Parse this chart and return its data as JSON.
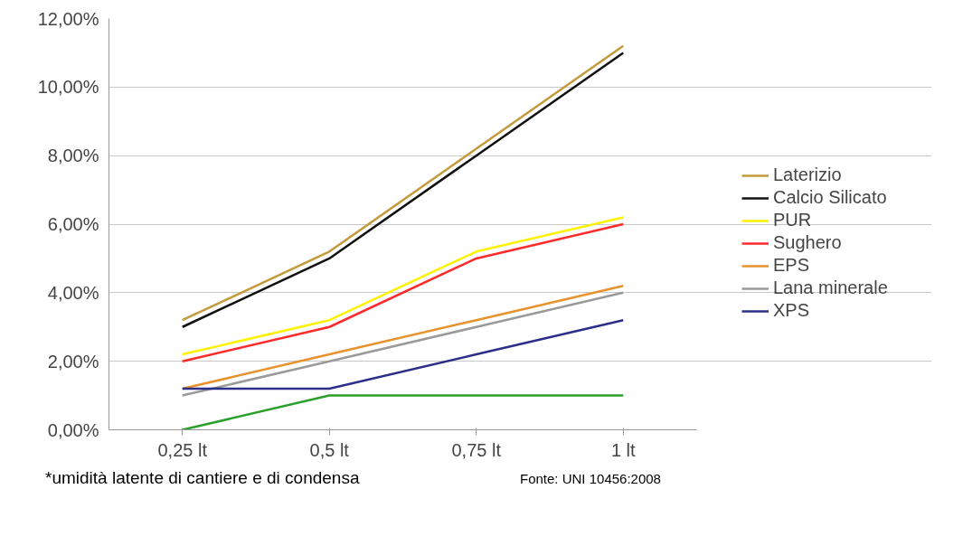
{
  "chart_data": {
    "type": "line",
    "categories": [
      "0,25 lt",
      "0,5 lt",
      "0,75 lt",
      "1 lt"
    ],
    "series": [
      {
        "name": "Laterizio",
        "color": "#c49a3a",
        "values": [
          3.2,
          5.2,
          8.2,
          11.2
        ]
      },
      {
        "name": "Calcio Silicato",
        "color": "#111111",
        "values": [
          3.0,
          5.0,
          8.0,
          11.0
        ]
      },
      {
        "name": "PUR",
        "color": "#fff200",
        "values": [
          2.2,
          3.2,
          5.2,
          6.2
        ]
      },
      {
        "name": "Sughero",
        "color": "#ff2a2a",
        "values": [
          2.0,
          3.0,
          5.0,
          6.0
        ]
      },
      {
        "name": "EPS",
        "color": "#e8922e",
        "values": [
          1.2,
          2.2,
          3.2,
          4.2
        ]
      },
      {
        "name": "Lana minerale",
        "color": "#9a9a9a",
        "values": [
          1.0,
          2.0,
          3.0,
          4.0
        ]
      },
      {
        "name": "XPS",
        "color": "#2b2f87",
        "values": [
          1.2,
          1.2,
          2.2,
          3.2
        ]
      },
      {
        "color": "#2ca02c",
        "values": [
          0,
          1.0,
          1.0,
          1.0
        ]
      }
    ],
    "ylim": [
      0,
      12
    ],
    "yticks": [
      {
        "value": 0,
        "label": "0,00%"
      },
      {
        "value": 2,
        "label": "2,00%"
      },
      {
        "value": 4,
        "label": "4,00%"
      },
      {
        "value": 6,
        "label": "6,00%"
      },
      {
        "value": 8,
        "label": "8,00%"
      },
      {
        "value": 10,
        "label": "10,00%"
      },
      {
        "value": 12,
        "label": "12,00%"
      }
    ],
    "grid": "y",
    "legend": "right",
    "marker": "none",
    "line_style": "solid",
    "annotations": [
      "*umidità latente di cantiere e di condensa",
      "Fonte: UNI 10456:2008"
    ]
  }
}
